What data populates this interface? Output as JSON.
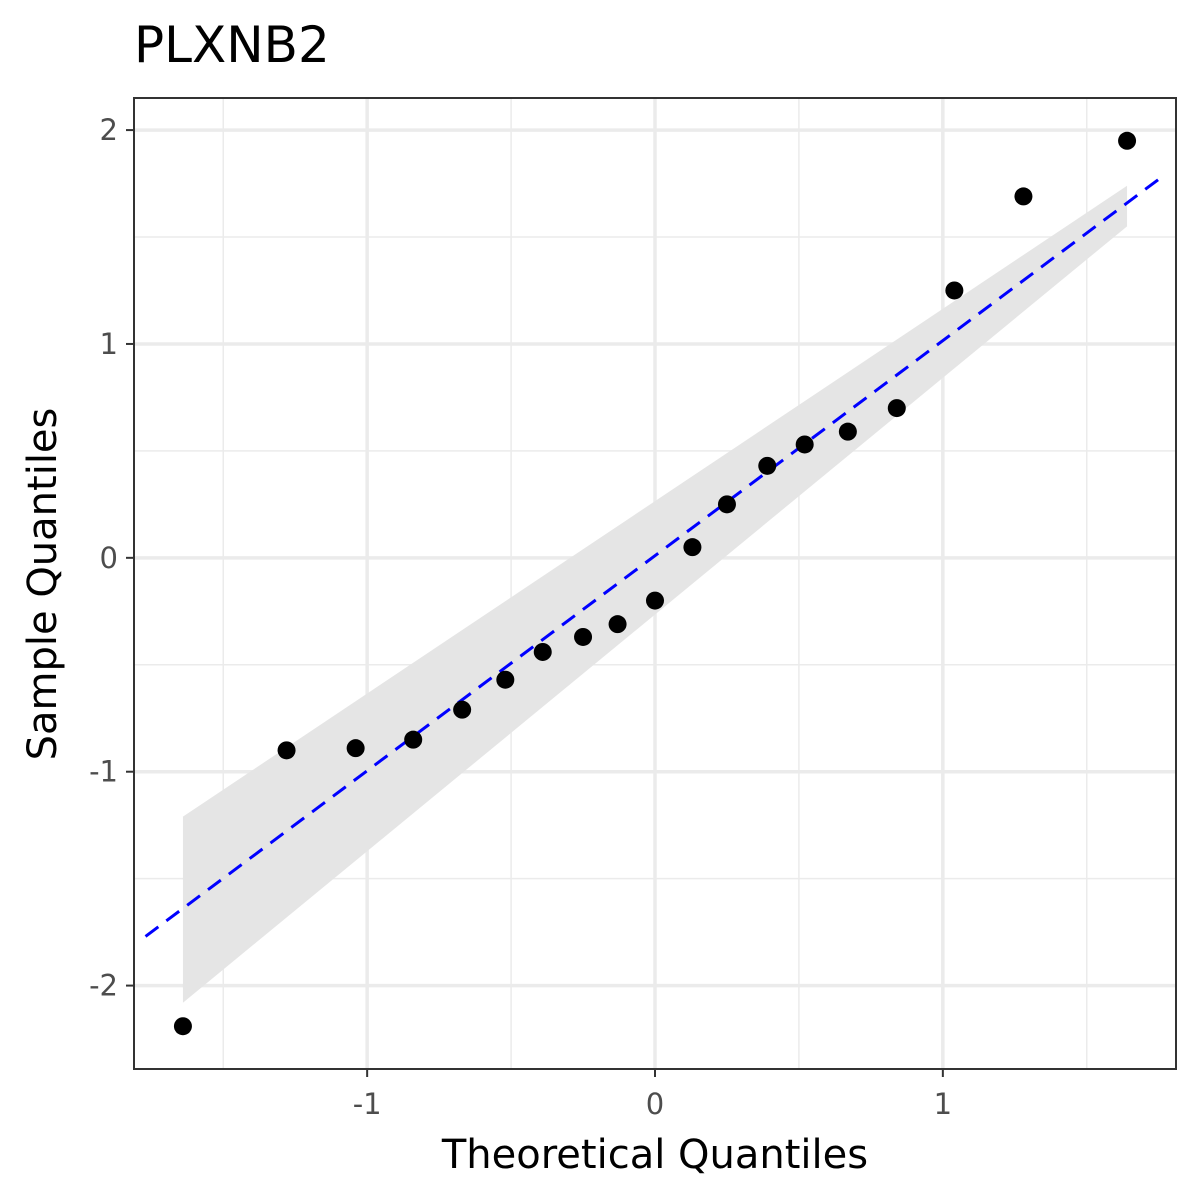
{
  "chart_data": {
    "type": "scatter",
    "title": "PLXNB2",
    "xlabel": "Theoretical Quantiles",
    "ylabel": "Sample Quantiles",
    "xlim": [
      -1.81,
      1.81
    ],
    "ylim": [
      -2.39,
      2.15
    ],
    "x_ticks": [
      -1,
      0,
      1
    ],
    "x_tick_labels": [
      "-1",
      "0",
      "1"
    ],
    "y_ticks": [
      -2,
      -1,
      0,
      1,
      2
    ],
    "y_tick_labels": [
      "-2",
      "-1",
      "0",
      "1",
      "2"
    ],
    "grid": true,
    "points": {
      "x": [
        -1.64,
        -1.28,
        -1.04,
        -0.84,
        -0.67,
        -0.52,
        -0.39,
        -0.25,
        -0.13,
        0.0,
        0.13,
        0.25,
        0.39,
        0.52,
        0.67,
        0.84,
        1.04,
        1.28,
        1.64
      ],
      "y": [
        -2.19,
        -0.9,
        -0.89,
        -0.85,
        -0.71,
        -0.57,
        -0.44,
        -0.37,
        -0.31,
        -0.2,
        0.05,
        0.25,
        0.43,
        0.53,
        0.59,
        0.7,
        1.25,
        1.69,
        1.95
      ],
      "color": "#000000"
    },
    "reference_line": {
      "x": [
        -1.77,
        1.75
      ],
      "y": [
        -1.77,
        1.77
      ],
      "color": "#0000ff",
      "style": "dashed"
    },
    "confidence_band": {
      "x": [
        -1.64,
        1.64
      ],
      "lower": [
        -2.08,
        1.55
      ],
      "upper": [
        -1.21,
        1.74
      ],
      "color": "#e5e5e5"
    },
    "panel_border_color": "#333333",
    "grid_color": "#ebebeb"
  }
}
